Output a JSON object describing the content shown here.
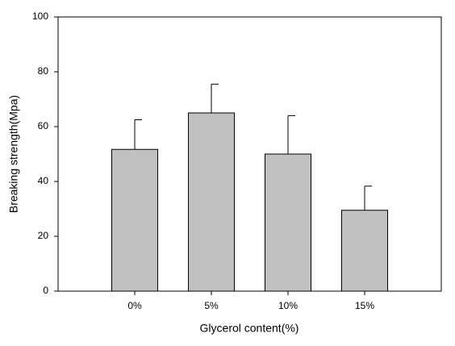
{
  "chart_data": {
    "type": "bar",
    "x_label": "Glycerol content(%)",
    "y_label": "Breaking strength(Mpa)",
    "categories": [
      "0%",
      "5%",
      "10%",
      "15%"
    ],
    "values": [
      51.7,
      65,
      50,
      29.5
    ],
    "errors": [
      10.8,
      10.5,
      14,
      8.8
    ],
    "color": "#c0c0c0",
    "ylim": [
      0,
      100
    ],
    "yticks": [
      0,
      20,
      40,
      60,
      80,
      100
    ]
  }
}
